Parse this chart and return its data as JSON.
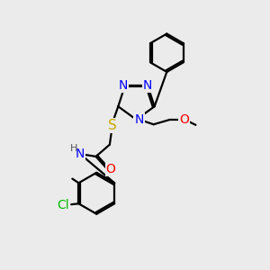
{
  "bg_color": "#ebebeb",
  "atom_colors": {
    "N": "#0000ff",
    "O": "#ff0000",
    "S": "#ccaa00",
    "Cl": "#00bb00",
    "C": "#000000",
    "H": "#555555"
  },
  "font_size_atom": 10,
  "font_size_small": 8,
  "line_width": 1.6,
  "figsize": [
    3.0,
    3.0
  ],
  "dpi": 100
}
